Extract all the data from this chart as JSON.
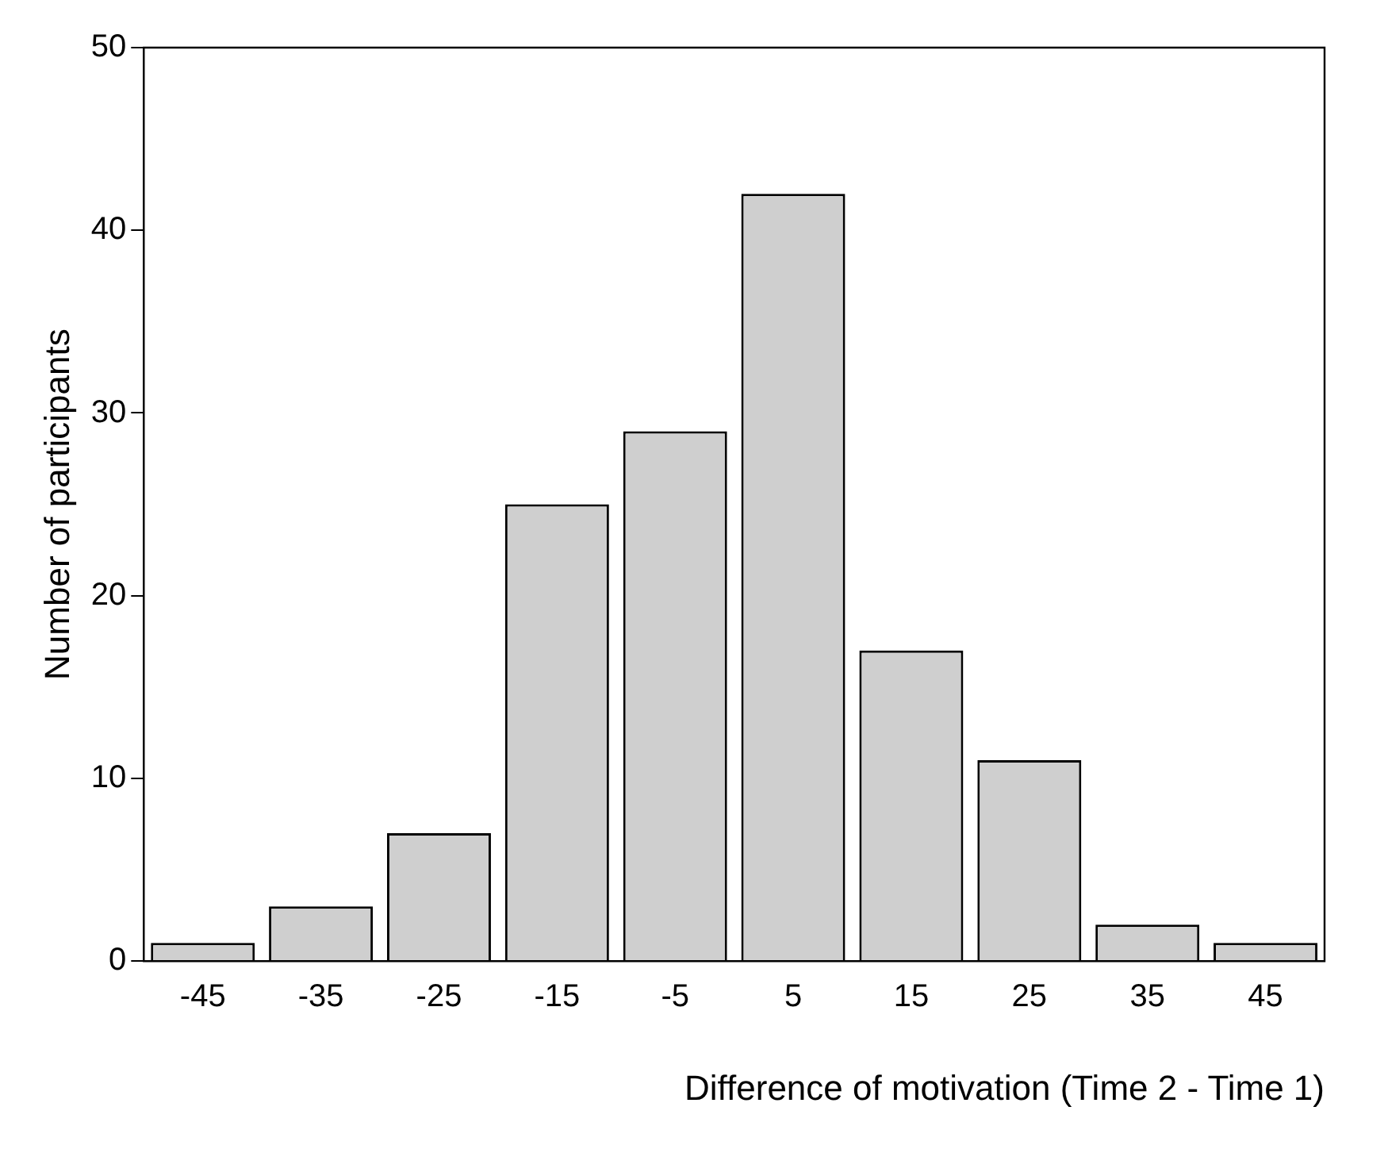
{
  "chart_data": {
    "type": "bar",
    "xlabel": "Difference of motivation (Time 2 - Time 1)",
    "ylabel": "Number of participants",
    "categories": [
      "-45",
      "-35",
      "-25",
      "-15",
      "-5",
      "5",
      "15",
      "25",
      "35",
      "45"
    ],
    "values": [
      1,
      3,
      7,
      25,
      29,
      42,
      17,
      11,
      2,
      1
    ],
    "color": "#cfcfcf",
    "ylim": [
      0,
      50
    ],
    "yticks": [
      0,
      10,
      20,
      30,
      40,
      50
    ],
    "grid": false,
    "legend": false
  }
}
